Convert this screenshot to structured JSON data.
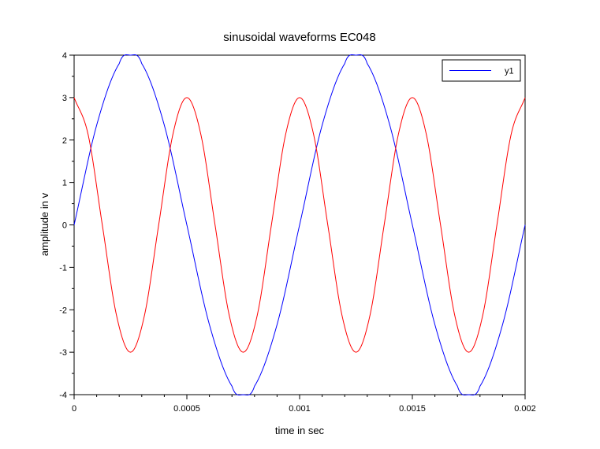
{
  "chart_data": {
    "type": "line",
    "title": "sinusoidal waveforms EC048",
    "xlabel": "time in sec",
    "ylabel": "amplitude in v",
    "xlim": [
      0,
      0.002
    ],
    "ylim": [
      -4,
      4
    ],
    "xticks": [
      0,
      0.0005,
      0.001,
      0.0015,
      0.002
    ],
    "xtick_labels": [
      "0",
      "0.0005",
      "0.001",
      "0.0015",
      "0.002"
    ],
    "yticks": [
      -4,
      -3,
      -2,
      -1,
      0,
      1,
      2,
      3,
      4
    ],
    "ytick_labels": [
      "-4",
      "-3",
      "-2",
      "-1",
      "0",
      "1",
      "2",
      "3",
      "4"
    ],
    "grid": false,
    "legend": {
      "position": "top-right",
      "entries": [
        "y1"
      ]
    },
    "series": [
      {
        "name": "y1",
        "color": "#0000ff",
        "x": [
          0,
          0.0001,
          0.0002,
          0.00025,
          0.0003,
          0.0004,
          0.0005,
          0.0006,
          0.0007,
          0.00075,
          0.0008,
          0.0009,
          0.001,
          0.0011,
          0.0012,
          0.00125,
          0.0013,
          0.0014,
          0.0015,
          0.0016,
          0.0017,
          0.00175,
          0.0018,
          0.0019,
          0.002
        ],
        "y": [
          0,
          2.35,
          3.8,
          4,
          3.8,
          2.35,
          0,
          -2.35,
          -3.8,
          -4,
          -3.8,
          -2.35,
          0,
          2.35,
          3.8,
          4,
          3.8,
          2.35,
          0,
          -2.35,
          -3.8,
          -4,
          -3.8,
          -2.35,
          0
        ]
      },
      {
        "color": "#ff0000",
        "x": [
          0,
          6.25e-05,
          0.000125,
          0.0001875,
          0.00025,
          0.0003125,
          0.000375,
          0.0004375,
          0.0005,
          0.0005625,
          0.000625,
          0.0006875,
          0.00075,
          0.0008125,
          0.000875,
          0.0009375,
          0.001,
          0.0010625,
          0.001125,
          0.0011875,
          0.00125,
          0.0013125,
          0.001375,
          0.0014375,
          0.0015,
          0.0015625,
          0.001625,
          0.0016875,
          0.00175,
          0.0018125,
          0.001875,
          0.0019375,
          0.002
        ],
        "y": [
          3,
          2.12,
          0,
          -2.12,
          -3,
          -2.12,
          0,
          2.12,
          3,
          2.12,
          0,
          -2.12,
          -3,
          -2.12,
          0,
          2.12,
          3,
          2.12,
          0,
          -2.12,
          -3,
          -2.12,
          0,
          2.12,
          3,
          2.12,
          0,
          -2.12,
          -3,
          -2.12,
          0,
          2.12,
          3
        ]
      }
    ]
  }
}
